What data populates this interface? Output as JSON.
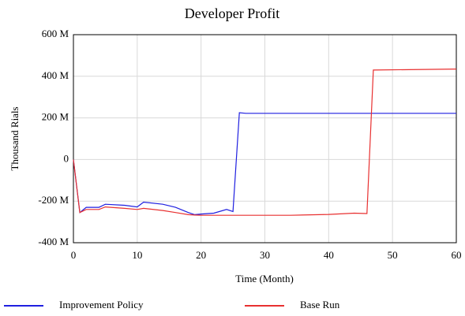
{
  "chart_data": {
    "type": "line",
    "title": "Developer Profit",
    "x_label": "Time (Month)",
    "y_label": "Thousand Rials",
    "x": [
      0,
      1,
      2,
      4,
      5,
      8,
      10,
      11,
      14,
      16,
      18,
      19,
      20,
      22,
      24,
      25,
      26,
      27,
      30,
      34,
      40,
      44,
      46,
      47,
      60
    ],
    "series": [
      {
        "name": "Improvement Policy",
        "color": "#1f1fe0",
        "values": [
          0,
          -255000000,
          -230000000,
          -230000000,
          -215000000,
          -220000000,
          -228000000,
          -205000000,
          -215000000,
          -230000000,
          -255000000,
          -265000000,
          -262000000,
          -258000000,
          -240000000,
          -250000000,
          225000000,
          222000000,
          222000000,
          222000000,
          222000000,
          222000000,
          222000000,
          222000000,
          222000000
        ]
      },
      {
        "name": "Base Run",
        "color": "#e83030",
        "values": [
          0,
          -255000000,
          -240000000,
          -240000000,
          -228000000,
          -235000000,
          -240000000,
          -235000000,
          -245000000,
          -255000000,
          -265000000,
          -267000000,
          -268000000,
          -268000000,
          -268000000,
          -268000000,
          -268000000,
          -268000000,
          -268000000,
          -268000000,
          -264000000,
          -258000000,
          -260000000,
          430000000,
          435000000
        ]
      }
    ],
    "xlim": [
      0,
      60
    ],
    "xticks": [
      0,
      10,
      20,
      30,
      40,
      50,
      60
    ],
    "ylim": [
      -400000000,
      600000000
    ],
    "yticks": [
      {
        "value": -400000000,
        "label": "-400 M"
      },
      {
        "value": -200000000,
        "label": "-200 M"
      },
      0,
      {
        "value": 200000000,
        "label": "200 M"
      },
      {
        "value": 400000000,
        "label": "400 M"
      },
      {
        "value": 600000000,
        "label": "600 M"
      }
    ],
    "grid": true,
    "legend": "bottom"
  }
}
